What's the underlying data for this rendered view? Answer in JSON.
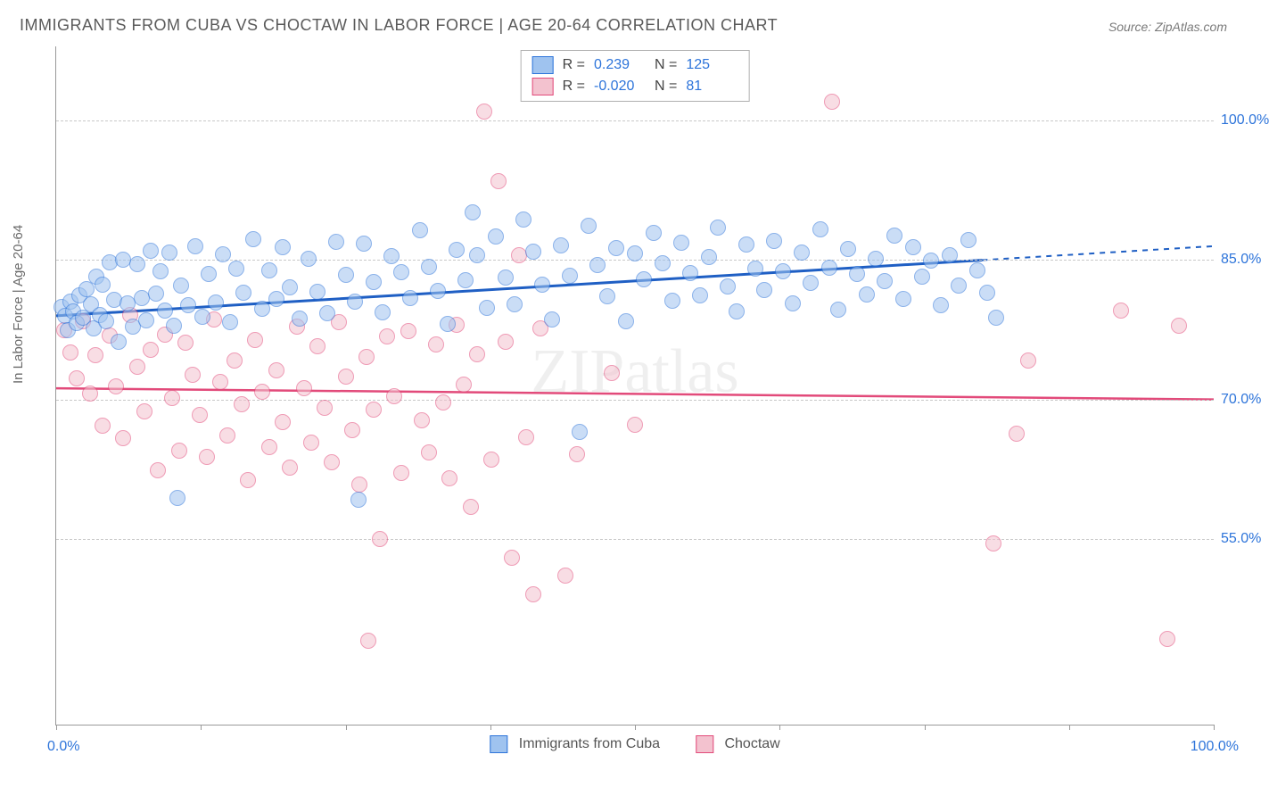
{
  "title": "IMMIGRANTS FROM CUBA VS CHOCTAW IN LABOR FORCE | AGE 20-64 CORRELATION CHART",
  "source": "Source: ZipAtlas.com",
  "ylabel": "In Labor Force | Age 20-64",
  "watermark": "ZIPatlas",
  "chart": {
    "type": "scatter",
    "xlim": [
      0,
      100
    ],
    "ylim": [
      35,
      108
    ],
    "y_gridlines": [
      55,
      70,
      85,
      100
    ],
    "y_tick_labels": [
      "55.0%",
      "70.0%",
      "85.0%",
      "100.0%"
    ],
    "x_tick_positions": [
      0,
      12.5,
      25,
      37.5,
      50,
      62.5,
      75,
      87.5,
      100
    ],
    "x_left_label": "0.0%",
    "x_right_label": "100.0%",
    "background_color": "#ffffff",
    "grid_color": "#c8c8c8",
    "marker_radius": 8,
    "marker_opacity": 0.55,
    "series": {
      "cuba": {
        "label": "Immigrants from Cuba",
        "fill": "#9fc3ef",
        "stroke": "#2d74da",
        "trend_color": "#1f5fc4",
        "trend_y_at_x0": 79.0,
        "trend_y_at_x100": 86.5,
        "trend_solid_until_x": 80,
        "R": "0.239",
        "N": "125",
        "points": [
          [
            0.5,
            80
          ],
          [
            0.8,
            79
          ],
          [
            1,
            77.5
          ],
          [
            1.2,
            80.5
          ],
          [
            1.5,
            79.5
          ],
          [
            1.8,
            78.2
          ],
          [
            2,
            81.2
          ],
          [
            2.3,
            78.8
          ],
          [
            2.6,
            81.9
          ],
          [
            3,
            80.2
          ],
          [
            3.2,
            77.6
          ],
          [
            3.5,
            83.2
          ],
          [
            3.8,
            79.1
          ],
          [
            4,
            82.4
          ],
          [
            4.3,
            78.4
          ],
          [
            4.6,
            84.8
          ],
          [
            5,
            80.7
          ],
          [
            5.4,
            76.2
          ],
          [
            5.8,
            85
          ],
          [
            6.2,
            80.3
          ],
          [
            6.6,
            77.8
          ],
          [
            7,
            84.6
          ],
          [
            7.4,
            80.9
          ],
          [
            7.8,
            78.5
          ],
          [
            8.2,
            86
          ],
          [
            8.6,
            81.4
          ],
          [
            9,
            83.8
          ],
          [
            9.4,
            79.6
          ],
          [
            9.8,
            85.8
          ],
          [
            10.2,
            77.9
          ],
          [
            10.8,
            82.3
          ],
          [
            11.4,
            80.1
          ],
          [
            12,
            86.5
          ],
          [
            12.6,
            78.9
          ],
          [
            13.2,
            83.5
          ],
          [
            13.8,
            80.4
          ],
          [
            14.4,
            85.6
          ],
          [
            15,
            78.3
          ],
          [
            15.6,
            84.1
          ],
          [
            16.2,
            81.5
          ],
          [
            17,
            87.3
          ],
          [
            17.8,
            79.8
          ],
          [
            18.4,
            83.9
          ],
          [
            19,
            80.8
          ],
          [
            19.6,
            86.4
          ],
          [
            20.2,
            82.1
          ],
          [
            21,
            78.7
          ],
          [
            21.8,
            85.1
          ],
          [
            22.6,
            81.6
          ],
          [
            23.4,
            79.3
          ],
          [
            24.2,
            87
          ],
          [
            25,
            83.4
          ],
          [
            25.8,
            80.5
          ],
          [
            26.1,
            59.2
          ],
          [
            26.6,
            86.8
          ],
          [
            27.4,
            82.6
          ],
          [
            28.2,
            79.4
          ],
          [
            29,
            85.4
          ],
          [
            29.8,
            83.7
          ],
          [
            30.6,
            80.9
          ],
          [
            31.4,
            88.2
          ],
          [
            32.2,
            84.3
          ],
          [
            33,
            81.7
          ],
          [
            33.8,
            78.1
          ],
          [
            34.6,
            86.1
          ],
          [
            35.4,
            82.8
          ],
          [
            36,
            90.1
          ],
          [
            36.4,
            85.5
          ],
          [
            37.2,
            79.9
          ],
          [
            38,
            87.5
          ],
          [
            38.8,
            83.1
          ],
          [
            39.6,
            80.2
          ],
          [
            40.4,
            89.4
          ],
          [
            41.2,
            85.9
          ],
          [
            42,
            82.4
          ],
          [
            42.8,
            78.6
          ],
          [
            43.6,
            86.6
          ],
          [
            44.4,
            83.3
          ],
          [
            45.2,
            66.5
          ],
          [
            46,
            88.7
          ],
          [
            46.8,
            84.5
          ],
          [
            47.6,
            81.1
          ],
          [
            48.4,
            86.3
          ],
          [
            49.2,
            78.4
          ],
          [
            50,
            85.7
          ],
          [
            50.8,
            82.9
          ],
          [
            51.6,
            87.9
          ],
          [
            52.4,
            84.7
          ],
          [
            53.2,
            80.6
          ],
          [
            54,
            86.9
          ],
          [
            54.8,
            83.6
          ],
          [
            55.6,
            81.2
          ],
          [
            56.4,
            85.3
          ],
          [
            57.2,
            88.5
          ],
          [
            58,
            82.2
          ],
          [
            58.8,
            79.5
          ],
          [
            59.6,
            86.7
          ],
          [
            60.4,
            84.1
          ],
          [
            61.2,
            81.8
          ],
          [
            62,
            87.1
          ],
          [
            62.8,
            83.8
          ],
          [
            63.6,
            80.3
          ],
          [
            64.4,
            85.8
          ],
          [
            65.2,
            82.5
          ],
          [
            66,
            88.3
          ],
          [
            66.8,
            84.2
          ],
          [
            67.6,
            79.7
          ],
          [
            68.4,
            86.2
          ],
          [
            69.2,
            83.5
          ],
          [
            70,
            81.3
          ],
          [
            70.8,
            85.1
          ],
          [
            71.6,
            82.7
          ],
          [
            72.4,
            87.6
          ],
          [
            73.2,
            80.8
          ],
          [
            74,
            86.4
          ],
          [
            74.8,
            83.2
          ],
          [
            75.6,
            84.9
          ],
          [
            76.4,
            80.1
          ],
          [
            77.2,
            85.5
          ],
          [
            78,
            82.3
          ],
          [
            78.8,
            87.2
          ],
          [
            79.6,
            83.9
          ],
          [
            80.4,
            81.5
          ],
          [
            10.5,
            59.4
          ],
          [
            81.2,
            78.8
          ]
        ]
      },
      "choctaw": {
        "label": "Choctaw",
        "fill": "#f3c2cf",
        "stroke": "#e24a7a",
        "trend_color": "#e24a7a",
        "trend_y_at_x0": 71.2,
        "trend_y_at_x100": 70.0,
        "trend_solid_until_x": 100,
        "R": "-0.020",
        "N": "81",
        "points": [
          [
            0.7,
            77.5
          ],
          [
            1.2,
            75.1
          ],
          [
            1.8,
            72.3
          ],
          [
            2.3,
            78.4
          ],
          [
            2.9,
            70.6
          ],
          [
            3.4,
            74.8
          ],
          [
            4,
            67.2
          ],
          [
            4.6,
            76.9
          ],
          [
            5.2,
            71.4
          ],
          [
            5.8,
            65.8
          ],
          [
            6.4,
            79.1
          ],
          [
            7,
            73.5
          ],
          [
            7.6,
            68.7
          ],
          [
            8.2,
            75.3
          ],
          [
            8.8,
            62.4
          ],
          [
            9.4,
            77
          ],
          [
            10,
            70.2
          ],
          [
            10.6,
            64.5
          ],
          [
            11.2,
            76.1
          ],
          [
            11.8,
            72.7
          ],
          [
            12.4,
            68.3
          ],
          [
            13,
            63.8
          ],
          [
            13.6,
            78.6
          ],
          [
            14.2,
            71.9
          ],
          [
            14.8,
            66.1
          ],
          [
            15.4,
            74.2
          ],
          [
            16,
            69.5
          ],
          [
            16.6,
            61.3
          ],
          [
            17.2,
            76.4
          ],
          [
            17.8,
            70.8
          ],
          [
            18.4,
            64.9
          ],
          [
            19,
            73.1
          ],
          [
            19.6,
            67.6
          ],
          [
            20.2,
            62.7
          ],
          [
            20.8,
            77.8
          ],
          [
            21.4,
            71.2
          ],
          [
            22,
            65.4
          ],
          [
            22.6,
            75.7
          ],
          [
            23.2,
            69.1
          ],
          [
            23.8,
            63.2
          ],
          [
            24.4,
            78.3
          ],
          [
            25,
            72.5
          ],
          [
            25.6,
            66.7
          ],
          [
            26.2,
            60.8
          ],
          [
            26.8,
            74.6
          ],
          [
            27.4,
            68.9
          ],
          [
            28,
            55
          ],
          [
            28.6,
            76.8
          ],
          [
            29.2,
            70.3
          ],
          [
            29.8,
            62.1
          ],
          [
            30.4,
            77.4
          ],
          [
            27,
            44
          ],
          [
            31.6,
            67.8
          ],
          [
            32.2,
            64.3
          ],
          [
            32.8,
            75.9
          ],
          [
            33.4,
            69.7
          ],
          [
            34,
            61.5
          ],
          [
            34.6,
            78
          ],
          [
            35.2,
            71.6
          ],
          [
            35.8,
            58.4
          ],
          [
            36.4,
            74.9
          ],
          [
            37,
            101
          ],
          [
            37.6,
            63.5
          ],
          [
            38.2,
            93.5
          ],
          [
            38.8,
            76.2
          ],
          [
            39.4,
            53
          ],
          [
            40,
            85.5
          ],
          [
            40.6,
            65.9
          ],
          [
            41.2,
            49
          ],
          [
            41.8,
            77.6
          ],
          [
            44,
            51
          ],
          [
            50,
            67.3
          ],
          [
            67,
            102
          ],
          [
            81,
            54.5
          ],
          [
            83,
            66.3
          ],
          [
            84,
            74.2
          ],
          [
            92,
            79.6
          ],
          [
            96,
            44.2
          ],
          [
            97,
            77.9
          ],
          [
            45,
            64.1
          ],
          [
            48,
            72.8
          ]
        ]
      }
    }
  }
}
